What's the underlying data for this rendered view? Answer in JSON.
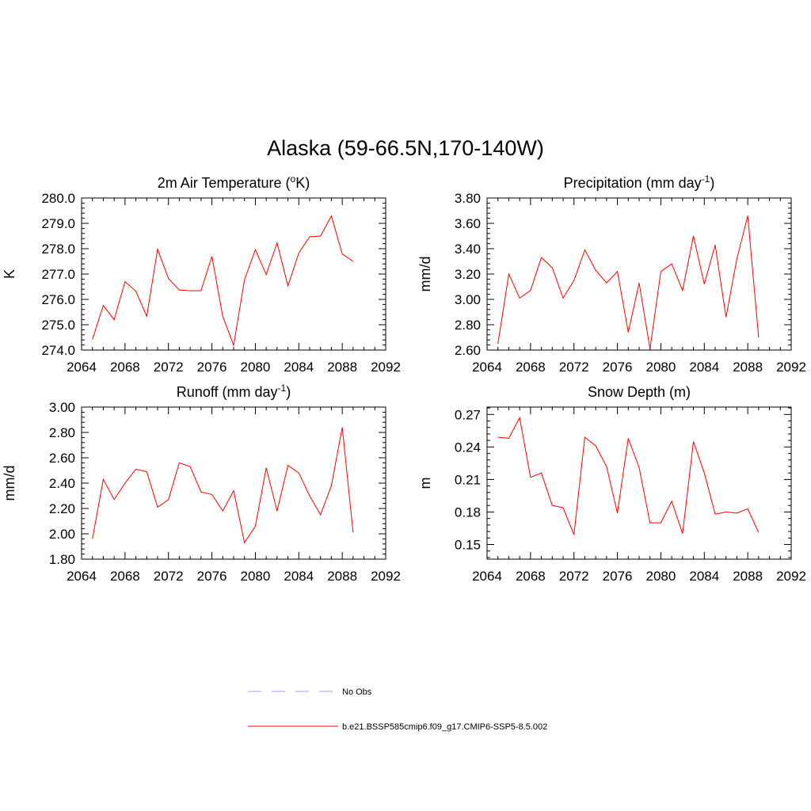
{
  "figure_title": "Alaska (59-66.5N,170-140W)",
  "chart_data": [
    {
      "type": "line",
      "title": "2m Air Temperature (",
      "title_sup": "o",
      "title_after": "K)",
      "xlabel": "",
      "ylabel": "K",
      "xlim": [
        2064,
        2092
      ],
      "ylim": [
        274.0,
        280.0
      ],
      "xticks": [
        2064,
        2068,
        2072,
        2076,
        2080,
        2084,
        2088,
        2092
      ],
      "xtick_labels": [
        "2064",
        "2068",
        "2072",
        "2076",
        "2080",
        "2084",
        "2088",
        "2092"
      ],
      "yticks": [
        274.0,
        275.0,
        276.0,
        277.0,
        278.0,
        279.0,
        280.0
      ],
      "ytick_labels": [
        "274.0",
        "275.0",
        "276.0",
        "277.0",
        "278.0",
        "279.0",
        "280.0"
      ],
      "grid": false,
      "x": [
        2065,
        2066,
        2067,
        2068,
        2069,
        2070,
        2071,
        2072,
        2073,
        2074,
        2075,
        2076,
        2077,
        2078,
        2079,
        2080,
        2081,
        2082,
        2083,
        2084,
        2085,
        2086,
        2087,
        2088,
        2089
      ],
      "series": [
        {
          "values": [
            274.42,
            275.76,
            275.2,
            276.7,
            276.32,
            275.33,
            277.98,
            276.82,
            276.37,
            276.34,
            276.34,
            277.7,
            275.33,
            274.19,
            276.77,
            277.96,
            276.98,
            278.23,
            276.53,
            277.83,
            278.47,
            278.5,
            279.29,
            277.79,
            277.5
          ]
        }
      ]
    },
    {
      "type": "line",
      "title": "Precipitation (mm day",
      "title_sup": "-1",
      "title_after": ")",
      "xlabel": "",
      "ylabel": "mm/d",
      "xlim": [
        2064,
        2092
      ],
      "ylim": [
        2.6,
        3.8
      ],
      "xticks": [
        2064,
        2068,
        2072,
        2076,
        2080,
        2084,
        2088,
        2092
      ],
      "xtick_labels": [
        "2064",
        "2068",
        "2072",
        "2076",
        "2080",
        "2084",
        "2088",
        "2092"
      ],
      "yticks": [
        2.6,
        2.8,
        3.0,
        3.2,
        3.4,
        3.6,
        3.8
      ],
      "ytick_labels": [
        "2.60",
        "2.80",
        "3.00",
        "3.20",
        "3.40",
        "3.60",
        "3.80"
      ],
      "grid": false,
      "x": [
        2065,
        2066,
        2067,
        2068,
        2069,
        2070,
        2071,
        2072,
        2073,
        2074,
        2075,
        2076,
        2077,
        2078,
        2079,
        2080,
        2081,
        2082,
        2083,
        2084,
        2085,
        2086,
        2087,
        2088,
        2089
      ],
      "series": [
        {
          "values": [
            2.65,
            3.2,
            3.01,
            3.07,
            3.33,
            3.25,
            3.01,
            3.15,
            3.39,
            3.23,
            3.13,
            3.22,
            2.74,
            3.13,
            2.61,
            3.22,
            3.28,
            3.07,
            3.5,
            3.12,
            3.43,
            2.86,
            3.32,
            3.66,
            2.7
          ]
        }
      ]
    },
    {
      "type": "line",
      "title": "Runoff (mm day",
      "title_sup": "-1",
      "title_after": ")",
      "xlabel": "",
      "ylabel": "mm/d",
      "xlim": [
        2064,
        2092
      ],
      "ylim": [
        1.8,
        3.0
      ],
      "xticks": [
        2064,
        2068,
        2072,
        2076,
        2080,
        2084,
        2088,
        2092
      ],
      "xtick_labels": [
        "2064",
        "2068",
        "2072",
        "2076",
        "2080",
        "2084",
        "2088",
        "2092"
      ],
      "yticks": [
        1.8,
        2.0,
        2.2,
        2.4,
        2.6,
        2.8,
        3.0
      ],
      "ytick_labels": [
        "1.80",
        "2.00",
        "2.20",
        "2.40",
        "2.60",
        "2.80",
        "3.00"
      ],
      "grid": false,
      "x": [
        2065,
        2066,
        2067,
        2068,
        2069,
        2070,
        2071,
        2072,
        2073,
        2074,
        2075,
        2076,
        2077,
        2078,
        2079,
        2080,
        2081,
        2082,
        2083,
        2084,
        2085,
        2086,
        2087,
        2088,
        2089
      ],
      "series": [
        {
          "values": [
            1.96,
            2.43,
            2.27,
            2.4,
            2.51,
            2.49,
            2.21,
            2.27,
            2.56,
            2.53,
            2.33,
            2.31,
            2.18,
            2.34,
            1.93,
            2.06,
            2.52,
            2.18,
            2.54,
            2.48,
            2.3,
            2.15,
            2.38,
            2.84,
            2.01
          ]
        }
      ]
    },
    {
      "type": "line",
      "title": "Snow Depth (m)",
      "title_sup": "",
      "title_after": "",
      "xlabel": "",
      "ylabel": "m",
      "xlim": [
        2064,
        2092
      ],
      "ylim": [
        0.1365,
        0.2768
      ],
      "xticks": [
        2064,
        2068,
        2072,
        2076,
        2080,
        2084,
        2088,
        2092
      ],
      "xtick_labels": [
        "2064",
        "2068",
        "2072",
        "2076",
        "2080",
        "2084",
        "2088",
        "2092"
      ],
      "yticks": [
        0.15,
        0.18,
        0.21,
        0.24,
        0.27
      ],
      "ytick_labels": [
        "0.15",
        "0.18",
        "0.21",
        "0.24",
        "0.27"
      ],
      "grid": false,
      "x": [
        2065,
        2066,
        2067,
        2068,
        2069,
        2070,
        2071,
        2072,
        2073,
        2074,
        2075,
        2076,
        2077,
        2078,
        2079,
        2080,
        2081,
        2082,
        2083,
        2084,
        2085,
        2086,
        2087,
        2088,
        2089
      ],
      "series": [
        {
          "values": [
            0.249,
            0.248,
            0.267,
            0.212,
            0.216,
            0.186,
            0.184,
            0.159,
            0.249,
            0.241,
            0.222,
            0.179,
            0.248,
            0.221,
            0.17,
            0.17,
            0.19,
            0.16,
            0.245,
            0.216,
            0.178,
            0.18,
            0.179,
            0.183,
            0.161
          ]
        }
      ]
    }
  ],
  "legend": {
    "items": [
      {
        "label": "No Obs",
        "color": "#a0a0ff",
        "dash": "dashed"
      },
      {
        "label": "b.e21.BSSP585cmip6.f09_g17.CMIP6-SSP5-8.5.002",
        "color": "#ff0000",
        "dash": "solid"
      }
    ]
  },
  "colors": {
    "series": "#ff0000",
    "axis": "#000000"
  }
}
